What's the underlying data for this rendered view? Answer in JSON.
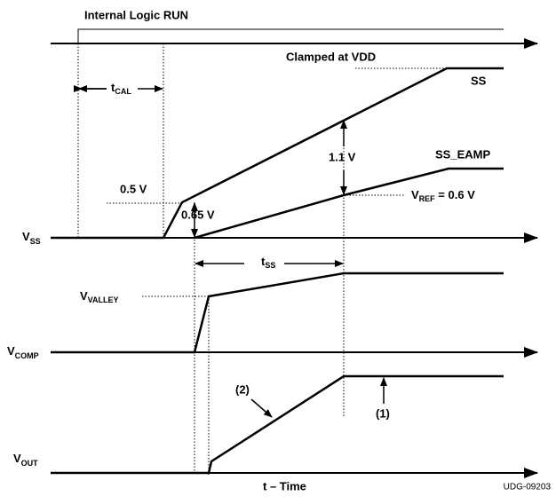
{
  "title": "Internal Logic RUN",
  "clamp_label": "Clamped at VDD",
  "ss_label": "SS",
  "ss_eamp_label": "SS_EAMP",
  "v_half": "0.5 V",
  "v_065": "0.65 V",
  "v_11": "1.1 V",
  "vref": {
    "main": "V",
    "sub": "REF",
    "rest": " = 0.6 V"
  },
  "t_cal": {
    "main": "t",
    "sub": "CAL"
  },
  "t_ss": {
    "main": "t",
    "sub": "SS"
  },
  "v_ss": {
    "main": "V",
    "sub": "SS"
  },
  "v_valley": {
    "main": "V",
    "sub": "VALLEY"
  },
  "v_comp": {
    "main": "V",
    "sub": "COMP"
  },
  "v_out": {
    "main": "V",
    "sub": "OUT"
  },
  "note_2": "(2)",
  "note_1": "(1)",
  "x_label": "t – Time",
  "figure_id": "UDG-09203"
}
